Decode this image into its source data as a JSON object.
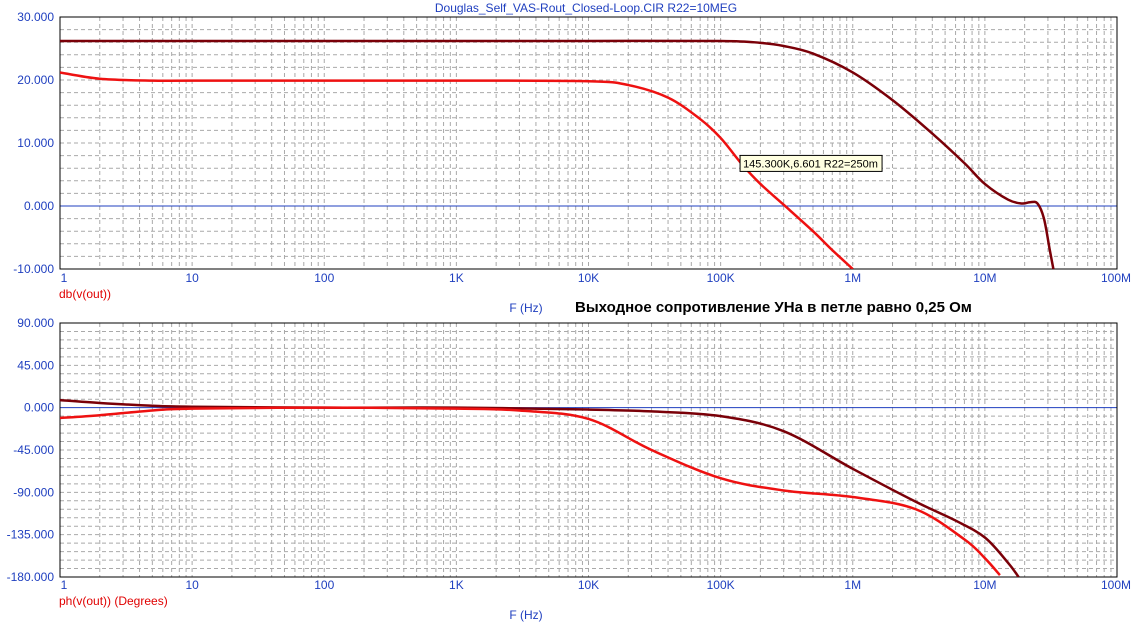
{
  "title": "Douglas_Self_VAS-Rout_Closed-Loop.CIR R22=10MEG",
  "annotation": "Выходное сопротивление УНа в петле равно 0,25  Ом",
  "colors": {
    "axis": "#1f3fbf",
    "grid": "#a9a9a9",
    "zero": "#1f3fbf",
    "red": "#ee1111",
    "darkred": "#7a0008",
    "label_red": "#e00000"
  },
  "chart_data": [
    {
      "type": "line",
      "xscale": "log",
      "xlim": [
        1,
        100000000
      ],
      "ylim": [
        -10,
        30
      ],
      "xlabel": "F (Hz)",
      "ylabel": "db(v(out))",
      "x_ticks": [
        "1",
        "10",
        "100",
        "1K",
        "10K",
        "100K",
        "1M",
        "10M",
        "100M"
      ],
      "y_ticks": [
        "30.000",
        "20.000",
        "10.000",
        "0.000",
        "-10.000"
      ],
      "y_tick_values": [
        30,
        20,
        10,
        0,
        -10
      ],
      "grid": true,
      "series": [
        {
          "color": "#7a0008",
          "x": [
            1,
            10,
            100,
            1000,
            10000,
            100000,
            200000,
            300000,
            500000,
            1000000,
            2000000,
            4000000,
            7000000,
            10000000,
            15000000,
            19000000,
            22000000,
            25000000,
            28000000,
            31000000,
            33000000
          ],
          "y": [
            26.2,
            26.2,
            26.2,
            26.2,
            26.2,
            26.2,
            25.9,
            25.4,
            24.2,
            21.2,
            16.8,
            11.5,
            6.8,
            3.5,
            1.0,
            0.4,
            0.6,
            0.4,
            -2,
            -7,
            -10
          ]
        },
        {
          "color": "#ee1111",
          "x": [
            1,
            2,
            5,
            10,
            100,
            1000,
            10000,
            20000,
            40000,
            70000,
            100000,
            145300,
            200000,
            300000,
            500000,
            700000,
            1000000
          ],
          "y": [
            21.2,
            20.2,
            19.9,
            19.9,
            19.9,
            19.9,
            19.8,
            19.2,
            17.2,
            13.8,
            10.8,
            6.6,
            3.5,
            0.2,
            -4.0,
            -7.0,
            -10.0
          ]
        }
      ],
      "cursor": {
        "x": 145300,
        "y": 6.601,
        "label": "145.300K,6.601 R22=250m"
      }
    },
    {
      "type": "line",
      "xscale": "log",
      "xlim": [
        1,
        100000000
      ],
      "ylim": [
        -180,
        90
      ],
      "xlabel": "F (Hz)",
      "ylabel": "ph(v(out)) (Degrees)",
      "x_ticks": [
        "1",
        "10",
        "100",
        "1K",
        "10K",
        "100K",
        "1M",
        "10M",
        "100M"
      ],
      "y_ticks": [
        "90.000",
        "45.000",
        "0.000",
        "-45.000",
        "-90.000",
        "-135.000",
        "-180.000"
      ],
      "y_tick_values": [
        90,
        45,
        0,
        -45,
        -90,
        -135,
        -180
      ],
      "grid": true,
      "series": [
        {
          "color": "#7a0008",
          "x": [
            1,
            2,
            5,
            10,
            100,
            1000,
            10000,
            30000,
            100000,
            300000,
            1000000,
            3000000,
            6000000,
            10000000,
            15000000,
            18000000
          ],
          "y": [
            8,
            5,
            2,
            1,
            0,
            0,
            -2,
            -4,
            -9,
            -25,
            -65,
            -100,
            -120,
            -138,
            -165,
            -180
          ]
        },
        {
          "color": "#ee1111",
          "x": [
            1,
            2,
            5,
            10,
            100,
            1000,
            3000,
            10000,
            30000,
            100000,
            300000,
            1000000,
            3000000,
            7000000,
            10000000,
            13000000
          ],
          "y": [
            -11,
            -8,
            -3,
            -1,
            0,
            -1,
            -3,
            -12,
            -45,
            -75,
            -88,
            -95,
            -108,
            -140,
            -160,
            -178
          ]
        }
      ]
    }
  ]
}
